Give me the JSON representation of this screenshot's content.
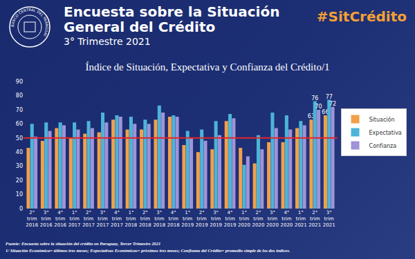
{
  "header": {
    "title": "Encuesta sobre la Situación General del Crédito",
    "subtitle": "3° Trimestre 2021",
    "hashtag": "#SitCrédito",
    "logo": "BANCO CENTRAL DEL PARAGUAY"
  },
  "chart_data": {
    "type": "bar",
    "title": "Índice de Situación, Expectativa y Confianza del Crédito/1",
    "categories": [
      "2° trim 2016",
      "3° trim 2016",
      "4° trim 2016",
      "1° trim 2017",
      "2° trim 2017",
      "3° trim 2017",
      "4° trim 2017",
      "1° trim 2018",
      "2° trim 2018",
      "3° trim 2018",
      "4° trim 2018",
      "1° trim 2019",
      "2° trim 2019",
      "3° trim 2019",
      "4° trim 2019",
      "1° trim 2020",
      "2° trim 2020",
      "3° trim 2020",
      "4° trim 2020",
      "1° trim 2021",
      "2° trim 2021",
      "3° trim 2021"
    ],
    "series": [
      {
        "name": "Situación",
        "color": "#f2a04a",
        "values": [
          43,
          48,
          57,
          50,
          53,
          54,
          63,
          56,
          56,
          63,
          65,
          45,
          40,
          42,
          62,
          43,
          32,
          47,
          47,
          57,
          63,
          66
        ],
        "value_labels": [
          null,
          null,
          null,
          null,
          null,
          null,
          null,
          null,
          null,
          null,
          null,
          null,
          null,
          null,
          null,
          null,
          null,
          null,
          null,
          null,
          "63",
          "66"
        ]
      },
      {
        "name": "Expectativa",
        "color": "#4db4d8",
        "values": [
          60,
          61,
          61,
          61,
          62,
          68,
          66,
          65,
          63,
          73,
          66,
          55,
          56,
          62,
          67,
          31,
          52,
          68,
          66,
          62,
          76,
          77
        ],
        "value_labels": [
          null,
          null,
          null,
          null,
          null,
          null,
          null,
          null,
          null,
          null,
          null,
          null,
          null,
          null,
          null,
          null,
          null,
          null,
          null,
          null,
          "76",
          "77"
        ]
      },
      {
        "name": "Confianza",
        "color": "#a093d8",
        "values": [
          51,
          55,
          59,
          56,
          57,
          61,
          65,
          60,
          60,
          68,
          65,
          50,
          48,
          52,
          64,
          37,
          42,
          57,
          56,
          59,
          70,
          72
        ],
        "value_labels": [
          null,
          null,
          null,
          null,
          null,
          null,
          null,
          null,
          null,
          null,
          null,
          null,
          null,
          null,
          null,
          null,
          null,
          null,
          null,
          null,
          "70",
          "72"
        ]
      }
    ],
    "threshold": 50,
    "ylim": [
      0,
      90
    ],
    "yticks": [
      0,
      10,
      20,
      30,
      40,
      50,
      60,
      70,
      80,
      90
    ],
    "grid": false,
    "legend": "right",
    "data_labels": true
  },
  "footer": {
    "source": "Fuente: Encuesta sobre la situación del crédito en Paraguay, Tercer Trimestre 2021",
    "note": "1/ Situación Económica= últimos tres meses; Expectativas Económicas= próximos tres meses; Confianza del Crédito= promedio simple de los dos índices."
  }
}
